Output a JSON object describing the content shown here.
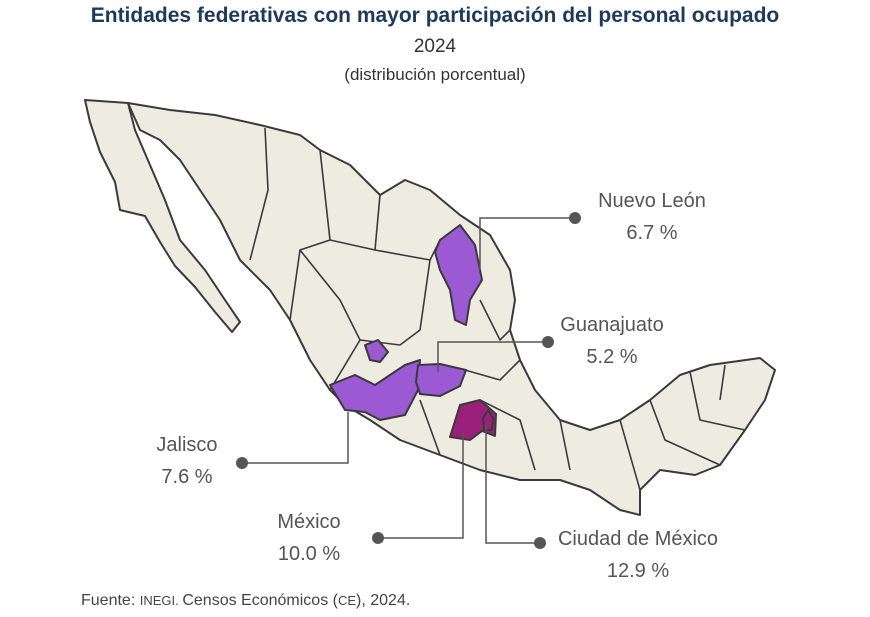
{
  "header": {
    "title": "Entidades federativas con mayor participación del personal ocupado",
    "year": "2024",
    "subtitle": "(distribución porcentual)"
  },
  "colors": {
    "base": "#eeebe0",
    "border": "#3a3a3a",
    "mid": "#9b59d4",
    "high": "#9b207c",
    "text": "#555555"
  },
  "states": [
    {
      "name": "Nuevo León",
      "value": "6.7 %",
      "color": "#9b59d4"
    },
    {
      "name": "Guanajuato",
      "value": "5.2 %",
      "color": "#9b59d4"
    },
    {
      "name": "Jalisco",
      "value": "7.6 %",
      "color": "#9b59d4"
    },
    {
      "name": "México",
      "value": "10.0 %",
      "color": "#9b207c"
    },
    {
      "name": "Ciudad de México",
      "value": "12.9 %",
      "color": "#9b207c"
    }
  ],
  "source": {
    "prefix": "Fuente: ",
    "org": "INEGI",
    "dot": ". ",
    "text": "Censos Económicos (",
    "abbr": "CE",
    "suffix": "), 2024."
  }
}
